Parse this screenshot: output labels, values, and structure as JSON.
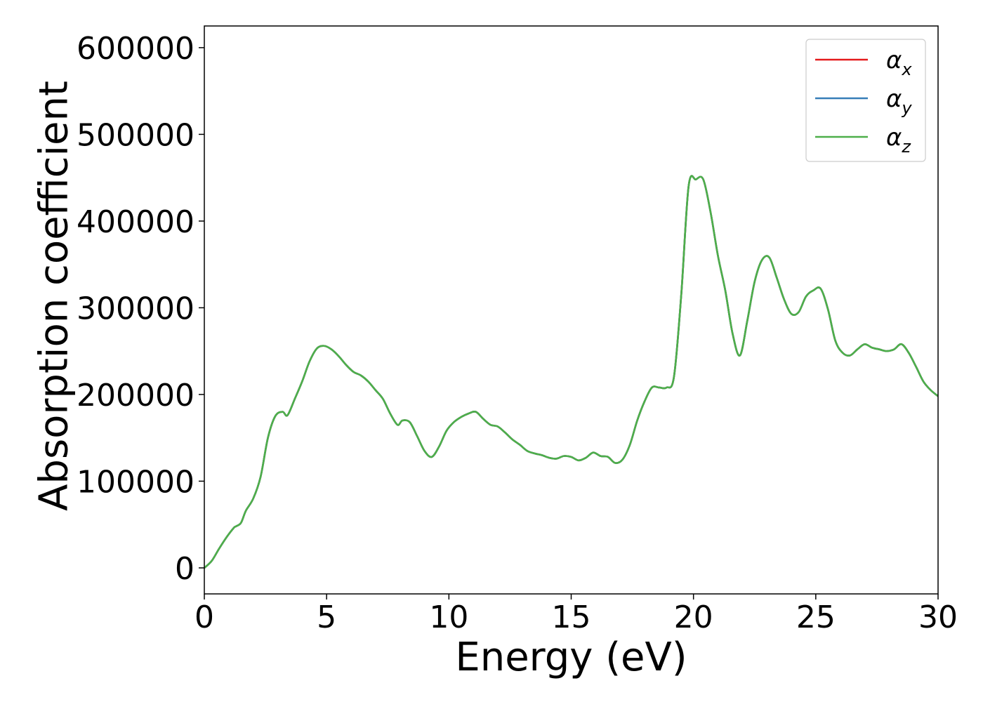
{
  "chart_data": {
    "type": "line",
    "title": "",
    "xlabel": "Energy (eV)",
    "ylabel": "Absorption coefficient",
    "xlim": [
      0,
      30
    ],
    "ylim": [
      -30000,
      625000
    ],
    "xticks": [
      0,
      5,
      10,
      15,
      20,
      25,
      30
    ],
    "yticks": [
      0,
      100000,
      200000,
      300000,
      400000,
      500000,
      600000
    ],
    "xtick_labels": [
      "0",
      "5",
      "10",
      "15",
      "20",
      "25",
      "30"
    ],
    "ytick_labels": [
      "0",
      "100000",
      "200000",
      "300000",
      "400000",
      "500000",
      "600000"
    ],
    "grid": false,
    "legend_position": "top-right",
    "series": [
      {
        "name": "α_x",
        "symbol": "α",
        "subscript": "x",
        "color": "#e41a1c",
        "x": [
          0,
          0.3,
          0.6,
          0.9,
          1.2,
          1.3,
          1.5,
          1.7,
          2.0,
          2.3,
          2.6,
          2.9,
          3.2,
          3.4,
          3.7,
          4.0,
          4.3,
          4.6,
          4.9,
          5.2,
          5.5,
          5.8,
          6.1,
          6.4,
          6.7,
          7.0,
          7.3,
          7.6,
          7.9,
          8.1,
          8.4,
          8.7,
          9.0,
          9.3,
          9.6,
          9.9,
          10.2,
          10.5,
          10.8,
          11.1,
          11.4,
          11.7,
          12.0,
          12.3,
          12.6,
          12.9,
          13.2,
          13.5,
          13.8,
          14.1,
          14.4,
          14.7,
          15.0,
          15.3,
          15.6,
          15.9,
          16.2,
          16.5,
          16.8,
          17.1,
          17.4,
          17.7,
          18.0,
          18.3,
          18.6,
          18.9,
          19.2,
          19.5,
          19.8,
          20.1,
          20.4,
          20.7,
          21.0,
          21.3,
          21.6,
          21.9,
          22.2,
          22.5,
          22.8,
          23.1,
          23.4,
          23.7,
          24.0,
          24.3,
          24.6,
          24.9,
          25.2,
          25.5,
          25.8,
          26.1,
          26.4,
          26.7,
          27.0,
          27.3,
          27.6,
          27.9,
          28.2,
          28.5,
          28.8,
          29.1,
          29.4,
          29.7,
          30.0
        ],
        "y": [
          0,
          8000,
          22000,
          35000,
          46000,
          48000,
          52000,
          66000,
          80000,
          105000,
          150000,
          175000,
          180000,
          176000,
          195000,
          215000,
          238000,
          253000,
          256000,
          252000,
          244000,
          234000,
          226000,
          222000,
          215000,
          205000,
          195000,
          178000,
          165000,
          170000,
          168000,
          152000,
          135000,
          128000,
          140000,
          158000,
          168000,
          174000,
          178000,
          180000,
          172000,
          165000,
          163000,
          156000,
          148000,
          142000,
          135000,
          132000,
          130000,
          127000,
          126000,
          129000,
          128000,
          124000,
          127000,
          133000,
          129000,
          128000,
          121000,
          125000,
          142000,
          170000,
          192000,
          208000,
          208000,
          208000,
          220000,
          315000,
          440000,
          448000,
          448000,
          410000,
          360000,
          320000,
          270000,
          245000,
          285000,
          330000,
          355000,
          358000,
          335000,
          310000,
          293000,
          295000,
          313000,
          320000,
          322000,
          298000,
          262000,
          248000,
          245000,
          252000,
          258000,
          254000,
          252000,
          250000,
          252000,
          258000,
          248000,
          232000,
          215000,
          205000,
          198000
        ]
      },
      {
        "name": "α_y",
        "symbol": "α",
        "subscript": "y",
        "color": "#377eb8",
        "x": [
          0,
          0.3,
          0.6,
          0.9,
          1.2,
          1.3,
          1.5,
          1.7,
          2.0,
          2.3,
          2.6,
          2.9,
          3.2,
          3.4,
          3.7,
          4.0,
          4.3,
          4.6,
          4.9,
          5.2,
          5.5,
          5.8,
          6.1,
          6.4,
          6.7,
          7.0,
          7.3,
          7.6,
          7.9,
          8.1,
          8.4,
          8.7,
          9.0,
          9.3,
          9.6,
          9.9,
          10.2,
          10.5,
          10.8,
          11.1,
          11.4,
          11.7,
          12.0,
          12.3,
          12.6,
          12.9,
          13.2,
          13.5,
          13.8,
          14.1,
          14.4,
          14.7,
          15.0,
          15.3,
          15.6,
          15.9,
          16.2,
          16.5,
          16.8,
          17.1,
          17.4,
          17.7,
          18.0,
          18.3,
          18.6,
          18.9,
          19.2,
          19.5,
          19.8,
          20.1,
          20.4,
          20.7,
          21.0,
          21.3,
          21.6,
          21.9,
          22.2,
          22.5,
          22.8,
          23.1,
          23.4,
          23.7,
          24.0,
          24.3,
          24.6,
          24.9,
          25.2,
          25.5,
          25.8,
          26.1,
          26.4,
          26.7,
          27.0,
          27.3,
          27.6,
          27.9,
          28.2,
          28.5,
          28.8,
          29.1,
          29.4,
          29.7,
          30.0
        ],
        "y": [
          0,
          8000,
          22000,
          35000,
          46000,
          48000,
          52000,
          66000,
          80000,
          105000,
          150000,
          175000,
          180000,
          176000,
          195000,
          215000,
          238000,
          253000,
          256000,
          252000,
          244000,
          234000,
          226000,
          222000,
          215000,
          205000,
          195000,
          178000,
          165000,
          170000,
          168000,
          152000,
          135000,
          128000,
          140000,
          158000,
          168000,
          174000,
          178000,
          180000,
          172000,
          165000,
          163000,
          156000,
          148000,
          142000,
          135000,
          132000,
          130000,
          127000,
          126000,
          129000,
          128000,
          124000,
          127000,
          133000,
          129000,
          128000,
          121000,
          125000,
          142000,
          170000,
          192000,
          208000,
          208000,
          208000,
          220000,
          315000,
          440000,
          448000,
          448000,
          410000,
          360000,
          320000,
          270000,
          245000,
          285000,
          330000,
          355000,
          358000,
          335000,
          310000,
          293000,
          295000,
          313000,
          320000,
          322000,
          298000,
          262000,
          248000,
          245000,
          252000,
          258000,
          254000,
          252000,
          250000,
          252000,
          258000,
          248000,
          232000,
          215000,
          205000,
          198000
        ]
      },
      {
        "name": "α_z",
        "symbol": "α",
        "subscript": "z",
        "color": "#4daf4a",
        "x": [
          0,
          0.3,
          0.6,
          0.9,
          1.2,
          1.3,
          1.5,
          1.7,
          2.0,
          2.3,
          2.6,
          2.9,
          3.2,
          3.4,
          3.7,
          4.0,
          4.3,
          4.6,
          4.9,
          5.2,
          5.5,
          5.8,
          6.1,
          6.4,
          6.7,
          7.0,
          7.3,
          7.6,
          7.9,
          8.1,
          8.4,
          8.7,
          9.0,
          9.3,
          9.6,
          9.9,
          10.2,
          10.5,
          10.8,
          11.1,
          11.4,
          11.7,
          12.0,
          12.3,
          12.6,
          12.9,
          13.2,
          13.5,
          13.8,
          14.1,
          14.4,
          14.7,
          15.0,
          15.3,
          15.6,
          15.9,
          16.2,
          16.5,
          16.8,
          17.1,
          17.4,
          17.7,
          18.0,
          18.3,
          18.6,
          18.9,
          19.2,
          19.5,
          19.8,
          20.1,
          20.4,
          20.7,
          21.0,
          21.3,
          21.6,
          21.9,
          22.2,
          22.5,
          22.8,
          23.1,
          23.4,
          23.7,
          24.0,
          24.3,
          24.6,
          24.9,
          25.2,
          25.5,
          25.8,
          26.1,
          26.4,
          26.7,
          27.0,
          27.3,
          27.6,
          27.9,
          28.2,
          28.5,
          28.8,
          29.1,
          29.4,
          29.7,
          30.0
        ],
        "y": [
          0,
          8000,
          22000,
          35000,
          46000,
          48000,
          52000,
          66000,
          80000,
          105000,
          150000,
          175000,
          180000,
          176000,
          195000,
          215000,
          238000,
          253000,
          256000,
          252000,
          244000,
          234000,
          226000,
          222000,
          215000,
          205000,
          195000,
          178000,
          165000,
          170000,
          168000,
          152000,
          135000,
          128000,
          140000,
          158000,
          168000,
          174000,
          178000,
          180000,
          172000,
          165000,
          163000,
          156000,
          148000,
          142000,
          135000,
          132000,
          130000,
          127000,
          126000,
          129000,
          128000,
          124000,
          127000,
          133000,
          129000,
          128000,
          121000,
          125000,
          142000,
          170000,
          192000,
          208000,
          208000,
          208000,
          220000,
          315000,
          440000,
          448000,
          448000,
          410000,
          360000,
          320000,
          270000,
          245000,
          285000,
          330000,
          355000,
          358000,
          335000,
          310000,
          293000,
          295000,
          313000,
          320000,
          322000,
          298000,
          262000,
          248000,
          245000,
          252000,
          258000,
          254000,
          252000,
          250000,
          252000,
          258000,
          248000,
          232000,
          215000,
          205000,
          198000
        ]
      }
    ]
  }
}
